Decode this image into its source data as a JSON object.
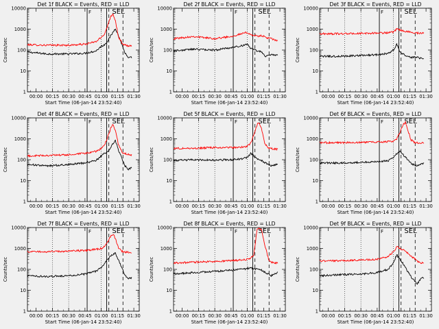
{
  "figure": {
    "background": "#f0f0f0"
  },
  "colors": {
    "events": "#000000",
    "lld": "#ff0000"
  },
  "chart_data": [
    {
      "type": "line",
      "title": "Det 1f BLACK = Events, RED = LLD",
      "xlabel": "Start Time (06-Jan-14 23:52:40)",
      "ylabel": "Counts/sec",
      "scale": "log",
      "ylim": [
        1,
        10000
      ],
      "x_range": [
        "23:52",
        "01:35"
      ],
      "xticks": [
        "00:00",
        "00:15",
        "00:30",
        "00:45",
        "01:00",
        "01:15",
        "01:30"
      ],
      "yticks": [
        "1",
        "10",
        "100",
        "1000",
        "10000"
      ],
      "markers": [
        "F",
        "SEL"
      ],
      "series": [
        {
          "name": "Events",
          "color": "#000000",
          "x": [
            "23:52",
            "00:10",
            "00:30",
            "00:45",
            "00:55",
            "01:00",
            "01:03",
            "01:06",
            "01:10",
            "01:13",
            "01:17",
            "01:22",
            "01:25",
            "01:28"
          ],
          "values": [
            80,
            65,
            65,
            70,
            90,
            150,
            180,
            280,
            600,
            1100,
            350,
            70,
            40,
            45
          ]
        },
        {
          "name": "LLD",
          "color": "#ff0000",
          "x": [
            "23:52",
            "00:10",
            "00:30",
            "00:45",
            "00:55",
            "01:00",
            "01:03",
            "01:06",
            "01:09",
            "01:11",
            "01:13",
            "01:16",
            "01:20",
            "01:25",
            "01:28"
          ],
          "values": [
            180,
            170,
            170,
            190,
            250,
            400,
            600,
            1500,
            4500,
            5200,
            2500,
            400,
            180,
            160,
            150
          ]
        }
      ]
    },
    {
      "type": "line",
      "title": "Det 2f BLACK = Events, RED = LLD",
      "xlabel": "Start Time (06-Jan-14 23:52:40)",
      "ylabel": "Counts/sec",
      "scale": "log",
      "ylim": [
        1,
        10000
      ],
      "x_range": [
        "23:52",
        "01:35"
      ],
      "xticks": [
        "00:00",
        "00:15",
        "00:30",
        "00:45",
        "01:00",
        "01:15",
        "01:30"
      ],
      "yticks": [
        "1",
        "10",
        "100",
        "1000",
        "10000"
      ],
      "markers": [
        "F",
        "SEL"
      ],
      "series": [
        {
          "name": "Events",
          "color": "#000000",
          "x": [
            "23:52",
            "00:10",
            "00:30",
            "00:45",
            "00:55",
            "01:00",
            "01:03",
            "01:06",
            "01:10",
            "01:13",
            "01:17",
            "01:22",
            "01:25",
            "01:28"
          ],
          "values": [
            90,
            110,
            100,
            130,
            160,
            200,
            120,
            100,
            90,
            80,
            50,
            60,
            55,
            60
          ]
        },
        {
          "name": "LLD",
          "color": "#ff0000",
          "x": [
            "23:52",
            "00:10",
            "00:30",
            "00:45",
            "00:55",
            "01:00",
            "01:03",
            "01:06",
            "01:10",
            "01:13",
            "01:17",
            "01:22",
            "01:25",
            "01:28"
          ],
          "values": [
            350,
            450,
            350,
            450,
            600,
            700,
            550,
            500,
            450,
            500,
            400,
            350,
            300,
            280
          ]
        }
      ]
    },
    {
      "type": "line",
      "title": "Det 3f BLACK = Events, RED = LLD",
      "xlabel": "Start Time (06-Jan-14 23:52:40)",
      "ylabel": "Counts/sec",
      "scale": "log",
      "ylim": [
        1,
        10000
      ],
      "x_range": [
        "23:52",
        "01:35"
      ],
      "xticks": [
        "00:00",
        "00:15",
        "00:30",
        "00:45",
        "01:00",
        "01:15",
        "01:30"
      ],
      "yticks": [
        "1",
        "10",
        "100",
        "1000",
        "10000"
      ],
      "markers": [
        "F",
        "SEL"
      ],
      "series": [
        {
          "name": "Events",
          "color": "#000000",
          "x": [
            "23:52",
            "00:10",
            "00:30",
            "00:45",
            "00:55",
            "01:00",
            "01:03",
            "01:06",
            "01:10",
            "01:13",
            "01:17",
            "01:22",
            "01:25",
            "01:28"
          ],
          "values": [
            50,
            50,
            55,
            60,
            70,
            100,
            200,
            80,
            60,
            50,
            45,
            45,
            40,
            40
          ]
        },
        {
          "name": "LLD",
          "color": "#ff0000",
          "x": [
            "23:52",
            "00:10",
            "00:30",
            "00:45",
            "00:55",
            "01:00",
            "01:03",
            "01:06",
            "01:10",
            "01:13",
            "01:17",
            "01:22",
            "01:25",
            "01:28"
          ],
          "values": [
            600,
            600,
            620,
            650,
            680,
            700,
            1000,
            900,
            800,
            750,
            700,
            650,
            650,
            650
          ]
        }
      ]
    },
    {
      "type": "line",
      "title": "Det 4f BLACK = Events, RED = LLD",
      "xlabel": "Start Time (06-Jan-14 23:52:40)",
      "ylabel": "Counts/sec",
      "scale": "log",
      "ylim": [
        1,
        10000
      ],
      "x_range": [
        "23:52",
        "01:35"
      ],
      "xticks": [
        "00:00",
        "00:15",
        "00:30",
        "00:45",
        "01:00",
        "01:15",
        "01:30"
      ],
      "yticks": [
        "1",
        "10",
        "100",
        "1000",
        "10000"
      ],
      "markers": [
        "F",
        "SEL"
      ],
      "series": [
        {
          "name": "Events",
          "color": "#000000",
          "x": [
            "23:52",
            "00:10",
            "00:30",
            "00:45",
            "00:55",
            "01:00",
            "01:03",
            "01:06",
            "01:10",
            "01:13",
            "01:17",
            "01:22",
            "01:25",
            "01:28"
          ],
          "values": [
            60,
            50,
            60,
            70,
            90,
            150,
            200,
            250,
            500,
            800,
            200,
            50,
            35,
            40
          ]
        },
        {
          "name": "LLD",
          "color": "#ff0000",
          "x": [
            "23:52",
            "00:10",
            "00:30",
            "00:45",
            "00:55",
            "01:00",
            "01:03",
            "01:06",
            "01:09",
            "01:11",
            "01:13",
            "01:16",
            "01:20",
            "01:25",
            "01:28"
          ],
          "values": [
            150,
            160,
            170,
            200,
            250,
            350,
            500,
            1200,
            3500,
            4800,
            2500,
            500,
            200,
            180,
            170
          ]
        }
      ]
    },
    {
      "type": "line",
      "title": "Det 5f BLACK = Events, RED = LLD",
      "xlabel": "Start Time (06-Jan-14 23:52:40)",
      "ylabel": "Counts/sec",
      "scale": "log",
      "ylim": [
        1,
        10000
      ],
      "x_range": [
        "23:52",
        "01:35"
      ],
      "xticks": [
        "00:00",
        "00:15",
        "00:30",
        "00:45",
        "01:00",
        "01:15",
        "01:30"
      ],
      "yticks": [
        "1",
        "10",
        "100",
        "1000",
        "10000"
      ],
      "markers": [
        "F",
        "SEL"
      ],
      "series": [
        {
          "name": "Events",
          "color": "#000000",
          "x": [
            "23:52",
            "00:10",
            "00:30",
            "00:45",
            "00:55",
            "01:00",
            "01:03",
            "01:06",
            "01:10",
            "01:13",
            "01:17",
            "01:22",
            "01:25",
            "01:28"
          ],
          "values": [
            90,
            100,
            95,
            100,
            110,
            130,
            200,
            150,
            100,
            90,
            70,
            50,
            55,
            60
          ]
        },
        {
          "name": "LLD",
          "color": "#ff0000",
          "x": [
            "23:52",
            "00:10",
            "00:30",
            "00:45",
            "00:55",
            "01:00",
            "01:03",
            "01:06",
            "01:09",
            "01:11",
            "01:13",
            "01:16",
            "01:20",
            "01:25",
            "01:28"
          ],
          "values": [
            350,
            350,
            380,
            380,
            400,
            450,
            600,
            1500,
            5000,
            5500,
            3000,
            600,
            350,
            320,
            320
          ]
        }
      ]
    },
    {
      "type": "line",
      "title": "Det 6f BLACK = Events, RED = LLD",
      "xlabel": "Start Time (06-Jan-14 23:52:40)",
      "ylabel": "Counts/sec",
      "scale": "log",
      "ylim": [
        1,
        10000
      ],
      "x_range": [
        "23:52",
        "01:35"
      ],
      "xticks": [
        "00:00",
        "00:15",
        "00:30",
        "00:45",
        "01:00",
        "01:15",
        "01:30"
      ],
      "yticks": [
        "1",
        "10",
        "100",
        "1000",
        "10000"
      ],
      "markers": [
        "F",
        "SEL"
      ],
      "series": [
        {
          "name": "Events",
          "color": "#000000",
          "x": [
            "23:52",
            "00:10",
            "00:30",
            "00:45",
            "00:55",
            "01:00",
            "01:03",
            "01:06",
            "01:10",
            "01:13",
            "01:17",
            "01:22",
            "01:25",
            "01:28"
          ],
          "values": [
            70,
            70,
            75,
            80,
            90,
            120,
            200,
            250,
            150,
            100,
            60,
            50,
            60,
            70
          ]
        },
        {
          "name": "LLD",
          "color": "#ff0000",
          "x": [
            "23:52",
            "00:10",
            "00:30",
            "00:45",
            "00:55",
            "01:00",
            "01:03",
            "01:06",
            "01:09",
            "01:11",
            "01:13",
            "01:16",
            "01:20",
            "01:25",
            "01:28"
          ],
          "values": [
            650,
            650,
            680,
            700,
            720,
            800,
            1000,
            2000,
            5000,
            6000,
            3000,
            900,
            650,
            650,
            650
          ]
        }
      ]
    },
    {
      "type": "line",
      "title": "Det 7f BLACK = Events, RED = LLD",
      "xlabel": "Start Time (06-Jan-14 23:52:40)",
      "ylabel": "Counts/sec",
      "scale": "log",
      "ylim": [
        1,
        10000
      ],
      "x_range": [
        "23:52",
        "01:35"
      ],
      "xticks": [
        "00:00",
        "00:15",
        "00:30",
        "00:45",
        "01:00",
        "01:15",
        "01:30"
      ],
      "yticks": [
        "1",
        "10",
        "100",
        "1000",
        "10000"
      ],
      "markers": [
        "F",
        "SEL"
      ],
      "series": [
        {
          "name": "Events",
          "color": "#000000",
          "x": [
            "23:52",
            "00:10",
            "00:30",
            "00:45",
            "00:55",
            "01:00",
            "01:03",
            "01:06",
            "01:10",
            "01:13",
            "01:17",
            "01:22",
            "01:25",
            "01:28"
          ],
          "values": [
            50,
            45,
            50,
            60,
            80,
            120,
            200,
            300,
            500,
            600,
            200,
            50,
            35,
            40
          ]
        },
        {
          "name": "LLD",
          "color": "#ff0000",
          "x": [
            "23:52",
            "00:10",
            "00:30",
            "00:45",
            "00:55",
            "01:00",
            "01:03",
            "01:06",
            "01:09",
            "01:11",
            "01:13",
            "01:16",
            "01:20",
            "01:25",
            "01:28"
          ],
          "values": [
            700,
            700,
            750,
            800,
            900,
            1000,
            1300,
            2000,
            4000,
            5000,
            3000,
            1000,
            700,
            650,
            650
          ]
        }
      ]
    },
    {
      "type": "line",
      "title": "Det 8f BLACK = Events, RED = LLD",
      "xlabel": "Start Time (06-Jan-14 23:52:40)",
      "ylabel": "Counts/sec",
      "scale": "log",
      "ylim": [
        1,
        10000
      ],
      "x_range": [
        "23:52",
        "01:35"
      ],
      "xticks": [
        "00:00",
        "00:15",
        "00:30",
        "00:45",
        "01:00",
        "01:15",
        "01:30"
      ],
      "yticks": [
        "1",
        "10",
        "100",
        "1000",
        "10000"
      ],
      "markers": [
        "F",
        "SEL"
      ],
      "series": [
        {
          "name": "Events",
          "color": "#000000",
          "x": [
            "23:52",
            "00:10",
            "00:30",
            "00:45",
            "00:55",
            "01:00",
            "01:03",
            "01:06",
            "01:10",
            "01:13",
            "01:17",
            "01:22",
            "01:25",
            "01:28"
          ],
          "values": [
            60,
            70,
            80,
            90,
            100,
            110,
            120,
            110,
            100,
            90,
            70,
            50,
            60,
            70
          ]
        },
        {
          "name": "LLD",
          "color": "#ff0000",
          "x": [
            "23:52",
            "00:10",
            "00:30",
            "00:45",
            "00:55",
            "01:00",
            "01:03",
            "01:06",
            "01:09",
            "01:11",
            "01:13",
            "01:16",
            "01:20",
            "01:25",
            "01:28"
          ],
          "values": [
            200,
            220,
            240,
            260,
            280,
            300,
            350,
            500,
            9000,
            9000,
            8000,
            1500,
            250,
            200,
            200
          ]
        }
      ]
    },
    {
      "type": "line",
      "title": "Det 9f BLACK = Events, RED = LLD",
      "xlabel": "Start Time (06-Jan-14 23:52:40)",
      "ylabel": "Counts/sec",
      "scale": "log",
      "ylim": [
        1,
        10000
      ],
      "x_range": [
        "23:52",
        "01:35"
      ],
      "xticks": [
        "00:00",
        "00:15",
        "00:30",
        "00:45",
        "01:00",
        "01:15",
        "01:30"
      ],
      "yticks": [
        "1",
        "10",
        "100",
        "1000",
        "10000"
      ],
      "markers": [
        "F",
        "SEL"
      ],
      "series": [
        {
          "name": "Events",
          "color": "#000000",
          "x": [
            "23:52",
            "00:10",
            "00:30",
            "00:45",
            "00:55",
            "01:00",
            "01:03",
            "01:06",
            "01:10",
            "01:13",
            "01:17",
            "01:22",
            "01:25",
            "01:28"
          ],
          "values": [
            50,
            55,
            60,
            70,
            100,
            200,
            500,
            300,
            150,
            80,
            40,
            20,
            35,
            40
          ]
        },
        {
          "name": "LLD",
          "color": "#ff0000",
          "x": [
            "23:52",
            "00:10",
            "00:30",
            "00:45",
            "00:55",
            "01:00",
            "01:03",
            "01:06",
            "01:10",
            "01:13",
            "01:17",
            "01:22",
            "01:25",
            "01:28"
          ],
          "values": [
            250,
            260,
            280,
            300,
            400,
            700,
            1200,
            1000,
            800,
            600,
            400,
            250,
            200,
            200
          ]
        }
      ]
    }
  ]
}
